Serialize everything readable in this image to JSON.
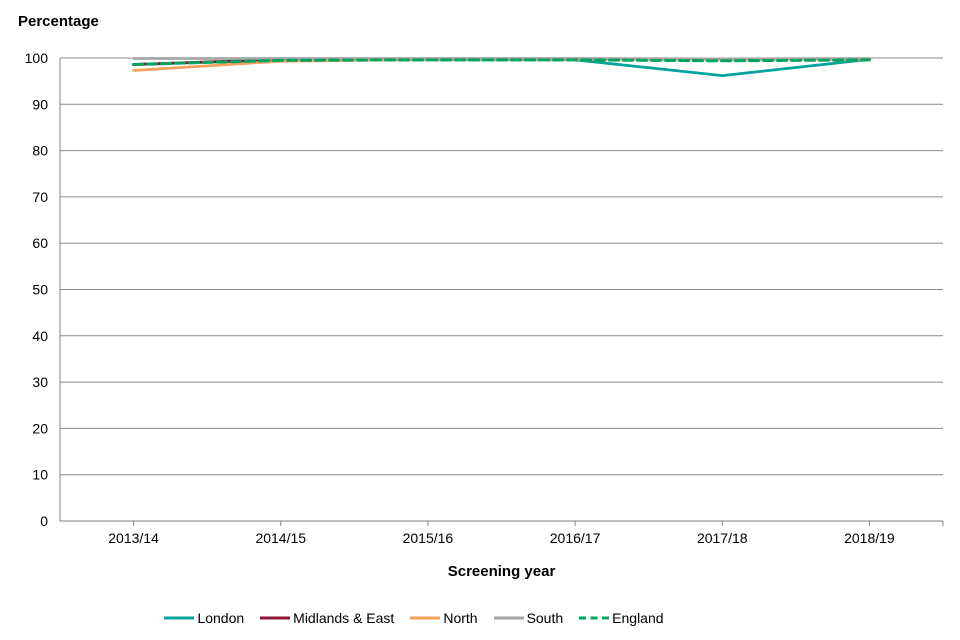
{
  "chart_data": {
    "type": "line",
    "title": "Percentage",
    "xlabel": "Screening year",
    "ylabel": "Percentage",
    "categories": [
      "2013/14",
      "2014/15",
      "2015/16",
      "2016/17",
      "2017/18",
      "2018/19"
    ],
    "ylim": [
      0,
      100
    ],
    "ytick_step": 10,
    "ytick_labels": [
      "0",
      "10",
      "20",
      "30",
      "40",
      "50",
      "60",
      "70",
      "80",
      "90",
      "100"
    ],
    "grid": "horizontal",
    "legend_position": "bottom",
    "axis_color": "#808080",
    "grid_color": "#8c8c8c",
    "text_color": "#000000",
    "series": [
      {
        "name": "London",
        "color": "#00a49b",
        "dash": "solid",
        "values": [
          98.6,
          99.6,
          99.6,
          99.6,
          96.2,
          99.7
        ]
      },
      {
        "name": "Midlands & East",
        "color": "#8e1537",
        "dash": "solid",
        "values": [
          98.6,
          99.7,
          99.8,
          99.8,
          99.7,
          99.8
        ]
      },
      {
        "name": "North",
        "color": "#f4a15d",
        "dash": "solid",
        "values": [
          97.3,
          99.3,
          99.7,
          99.7,
          99.7,
          99.7
        ]
      },
      {
        "name": "South",
        "color": "#a6a6a6",
        "dash": "solid",
        "values": [
          99.9,
          99.9,
          99.9,
          99.9,
          99.8,
          99.9
        ]
      },
      {
        "name": "England",
        "color": "#00a45f",
        "dash": "dashed",
        "values": [
          98.6,
          99.5,
          99.6,
          99.6,
          99.4,
          99.6
        ]
      }
    ]
  }
}
